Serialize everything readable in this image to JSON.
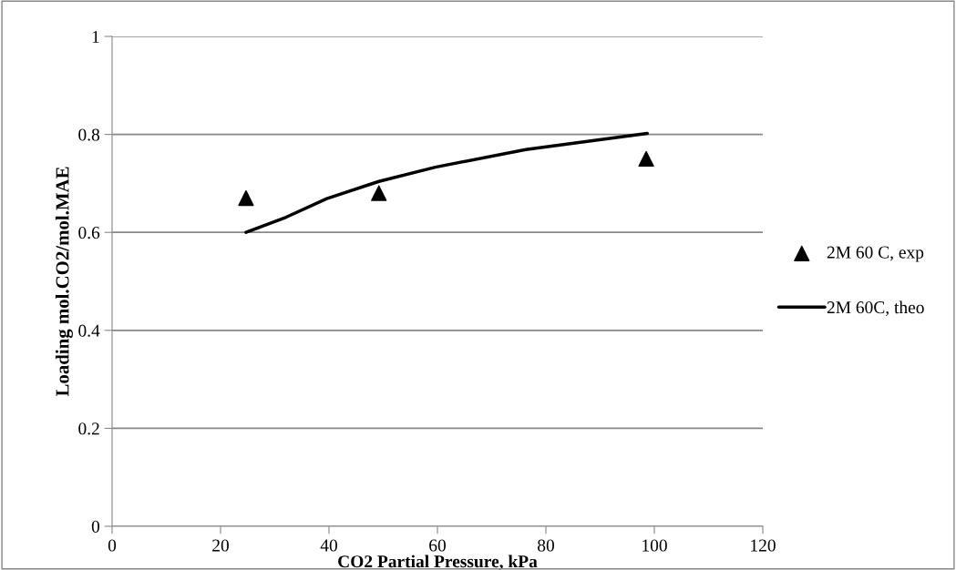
{
  "chart_data": {
    "type": "scatter",
    "xlabel": "CO2 Partial Pressure, kPa",
    "ylabel": "Loading mol.CO2/mol.MAE",
    "xlim": [
      0,
      120
    ],
    "xticks": [
      0,
      20,
      40,
      60,
      80,
      100,
      120
    ],
    "ylim": [
      0,
      1
    ],
    "yticks": [
      0,
      0.2,
      0.4,
      0.6,
      0.8,
      1
    ],
    "grid": "y",
    "legend": "right",
    "series": [
      {
        "name": "2M 60 C, exp",
        "marker": "triangle",
        "color": "#000000",
        "x": [
          24.7,
          49.2,
          98.5
        ],
        "values": [
          0.67,
          0.68,
          0.75
        ]
      },
      {
        "name": "2M 60C, theo",
        "type": "line",
        "marker": "none",
        "line_style": "solid",
        "color": "#000000",
        "x": [
          24.7,
          32.1,
          39.6,
          49.2,
          59.6,
          76.3,
          98.7
        ],
        "values": [
          0.6,
          0.631,
          0.669,
          0.704,
          0.733,
          0.769,
          0.802
        ]
      }
    ]
  }
}
